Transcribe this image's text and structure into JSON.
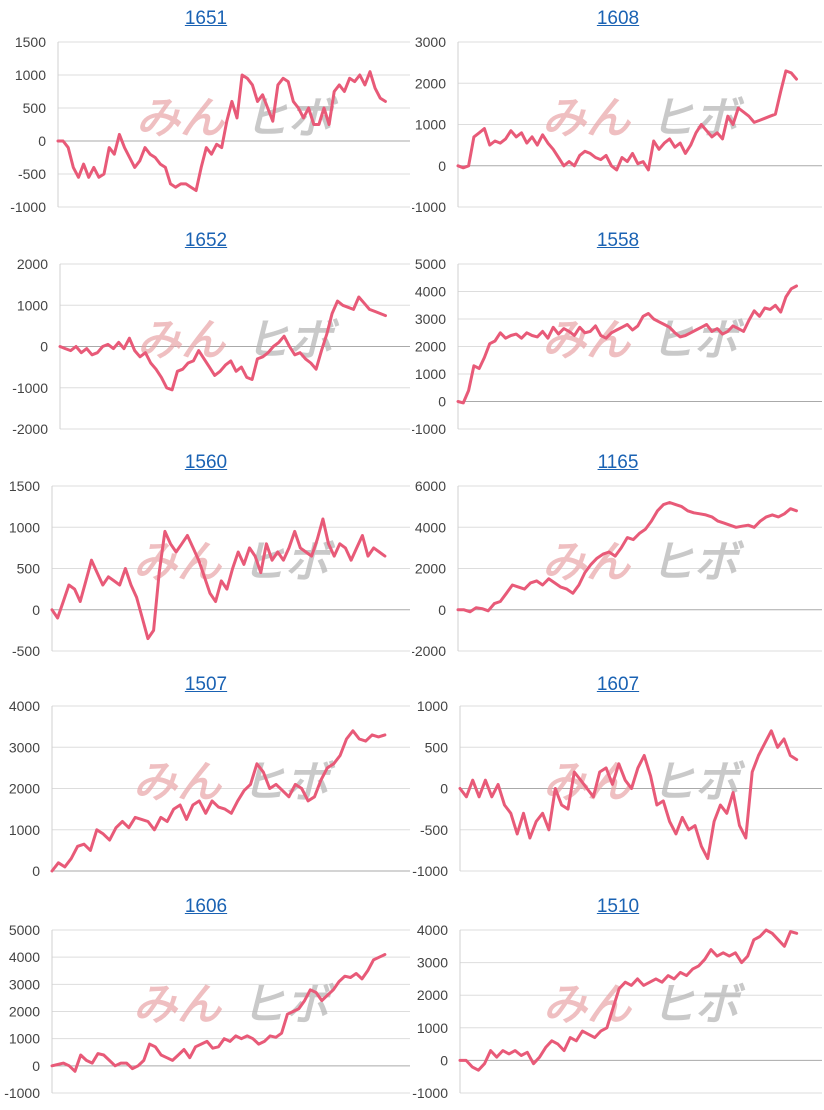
{
  "watermark": {
    "part1": "みん",
    "part2": "ヒボ",
    "colors": [
      "#e9a4a8",
      "#b7b7b7"
    ]
  },
  "line_color": "#e85a78",
  "chart_data": [
    {
      "type": "line",
      "title": "1651",
      "ylim": [
        -1000,
        1500
      ],
      "yticks": [
        1500,
        1000,
        500,
        0,
        -500,
        -1000
      ],
      "values": [
        0,
        0,
        -100,
        -400,
        -550,
        -350,
        -550,
        -400,
        -550,
        -500,
        -100,
        -200,
        100,
        -100,
        -250,
        -400,
        -300,
        -100,
        -200,
        -250,
        -350,
        -400,
        -650,
        -700,
        -650,
        -650,
        -700,
        -750,
        -400,
        -100,
        -200,
        -50,
        -100,
        300,
        600,
        350,
        1000,
        950,
        850,
        600,
        700,
        500,
        300,
        850,
        950,
        900,
        600,
        500,
        350,
        500,
        250,
        250,
        500,
        250,
        750,
        850,
        750,
        950,
        900,
        1000,
        850,
        1050,
        800,
        650,
        600
      ]
    },
    {
      "type": "line",
      "title": "1608",
      "ylim": [
        -1000,
        3000
      ],
      "yticks": [
        3000,
        2000,
        1000,
        0,
        -1000
      ],
      "values": [
        0,
        -50,
        0,
        700,
        800,
        900,
        500,
        600,
        550,
        650,
        850,
        700,
        800,
        550,
        700,
        500,
        750,
        550,
        400,
        200,
        0,
        100,
        0,
        250,
        350,
        300,
        200,
        150,
        250,
        0,
        -100,
        200,
        100,
        300,
        50,
        100,
        -100,
        600,
        400,
        550,
        650,
        450,
        550,
        300,
        500,
        800,
        1000,
        850,
        700,
        800,
        650,
        1200,
        1000,
        1400,
        1300,
        1200,
        1050,
        1100,
        1150,
        1200,
        1250,
        1800,
        2300,
        2250,
        2100
      ]
    },
    {
      "type": "line",
      "title": "1652",
      "ylim": [
        -2000,
        2000
      ],
      "yticks": [
        2000,
        1000,
        0,
        -1000,
        -2000
      ],
      "values": [
        0,
        -50,
        -100,
        0,
        -150,
        -50,
        -200,
        -150,
        0,
        50,
        -50,
        100,
        -50,
        200,
        -100,
        -250,
        -150,
        -400,
        -550,
        -750,
        -1000,
        -1050,
        -600,
        -550,
        -400,
        -350,
        -100,
        -300,
        -500,
        -700,
        -600,
        -450,
        -350,
        -600,
        -500,
        -750,
        -800,
        -300,
        -250,
        -150,
        0,
        100,
        250,
        0,
        -200,
        -150,
        -300,
        -400,
        -550,
        -100,
        300,
        800,
        1100,
        1000,
        950,
        900,
        1200,
        1050,
        900,
        850,
        800,
        750
      ]
    },
    {
      "type": "line",
      "title": "1558",
      "ylim": [
        -1000,
        5000
      ],
      "yticks": [
        5000,
        4000,
        3000,
        2000,
        1000,
        0,
        -1000
      ],
      "values": [
        0,
        -50,
        400,
        1300,
        1200,
        1600,
        2100,
        2200,
        2500,
        2300,
        2400,
        2450,
        2300,
        2500,
        2400,
        2350,
        2550,
        2300,
        2700,
        2450,
        2650,
        2550,
        2400,
        2700,
        2500,
        2550,
        2750,
        2400,
        2300,
        2500,
        2600,
        2700,
        2800,
        2600,
        2750,
        3100,
        3200,
        3000,
        2900,
        2800,
        2700,
        2500,
        2350,
        2400,
        2500,
        2600,
        2700,
        2800,
        2550,
        2650,
        2450,
        2550,
        2750,
        2650,
        2550,
        2950,
        3300,
        3100,
        3400,
        3350,
        3500,
        3250,
        3800,
        4100,
        4200
      ]
    },
    {
      "type": "line",
      "title": "1560",
      "ylim": [
        -500,
        1500
      ],
      "yticks": [
        1500,
        1000,
        500,
        0,
        -500
      ],
      "values": [
        0,
        -100,
        100,
        300,
        250,
        100,
        350,
        600,
        450,
        300,
        400,
        350,
        300,
        500,
        300,
        150,
        -100,
        -350,
        -250,
        450,
        950,
        800,
        700,
        800,
        900,
        750,
        600,
        400,
        200,
        100,
        350,
        250,
        500,
        700,
        550,
        750,
        650,
        450,
        800,
        600,
        700,
        600,
        750,
        950,
        750,
        700,
        650,
        850,
        1100,
        800,
        650,
        800,
        750,
        600,
        750,
        900,
        650,
        750,
        700,
        650
      ]
    },
    {
      "type": "line",
      "title": "1165",
      "ylim": [
        -2000,
        6000
      ],
      "yticks": [
        6000,
        4000,
        2000,
        0,
        -2000
      ],
      "values": [
        0,
        0,
        -100,
        100,
        50,
        -50,
        300,
        400,
        800,
        1200,
        1100,
        1000,
        1300,
        1400,
        1200,
        1500,
        1300,
        1100,
        1000,
        800,
        1200,
        1800,
        2200,
        2500,
        2700,
        2800,
        2600,
        3000,
        3500,
        3400,
        3700,
        3900,
        4300,
        4800,
        5100,
        5200,
        5100,
        5000,
        4800,
        4700,
        4650,
        4600,
        4500,
        4300,
        4200,
        4100,
        4000,
        4050,
        4100,
        4000,
        4300,
        4500,
        4600,
        4500,
        4650,
        4900,
        4800
      ]
    },
    {
      "type": "line",
      "title": "1507",
      "ylim": [
        0,
        4000
      ],
      "yticks": [
        4000,
        3000,
        2000,
        1000,
        0
      ],
      "values": [
        0,
        200,
        100,
        300,
        600,
        650,
        500,
        1000,
        900,
        750,
        1050,
        1200,
        1050,
        1300,
        1250,
        1200,
        1000,
        1300,
        1200,
        1500,
        1600,
        1250,
        1600,
        1700,
        1400,
        1700,
        1550,
        1500,
        1400,
        1700,
        1950,
        2100,
        2600,
        2400,
        2000,
        2100,
        1950,
        1800,
        2100,
        2000,
        1700,
        1800,
        2200,
        2500,
        2600,
        2800,
        3200,
        3400,
        3200,
        3150,
        3300,
        3250,
        3300
      ]
    },
    {
      "type": "line",
      "title": "1607",
      "ylim": [
        -1000,
        1000
      ],
      "yticks": [
        1000,
        500,
        0,
        -500,
        -1000
      ],
      "values": [
        0,
        -100,
        100,
        -100,
        100,
        -100,
        50,
        -200,
        -300,
        -550,
        -300,
        -600,
        -400,
        -300,
        -500,
        0,
        -200,
        -250,
        200,
        100,
        0,
        -100,
        200,
        250,
        50,
        300,
        100,
        0,
        250,
        400,
        150,
        -200,
        -150,
        -400,
        -550,
        -350,
        -500,
        -450,
        -700,
        -850,
        -400,
        -200,
        -300,
        -50,
        -450,
        -600,
        200,
        400,
        550,
        700,
        500,
        600,
        400,
        350
      ]
    },
    {
      "type": "line",
      "title": "1606",
      "ylim": [
        -1000,
        5000
      ],
      "yticks": [
        5000,
        4000,
        3000,
        2000,
        1000,
        0,
        -1000
      ],
      "values": [
        0,
        50,
        100,
        0,
        -200,
        400,
        200,
        100,
        450,
        400,
        200,
        0,
        100,
        100,
        -100,
        0,
        200,
        800,
        700,
        400,
        300,
        200,
        400,
        600,
        300,
        700,
        800,
        900,
        650,
        700,
        1000,
        900,
        1100,
        1000,
        1100,
        1000,
        800,
        900,
        1100,
        1050,
        1200,
        1900,
        2000,
        2100,
        2400,
        2800,
        2700,
        2400,
        2600,
        2800,
        3100,
        3300,
        3250,
        3400,
        3200,
        3500,
        3900,
        4000,
        4100
      ]
    },
    {
      "type": "line",
      "title": "1510",
      "ylim": [
        -1000,
        4000
      ],
      "yticks": [
        4000,
        3000,
        2000,
        1000,
        0,
        -1000
      ],
      "values": [
        0,
        0,
        -200,
        -300,
        -100,
        300,
        100,
        300,
        200,
        300,
        150,
        250,
        -100,
        100,
        400,
        600,
        500,
        300,
        700,
        600,
        900,
        800,
        700,
        900,
        1000,
        1600,
        2200,
        2400,
        2300,
        2500,
        2300,
        2400,
        2500,
        2400,
        2600,
        2500,
        2700,
        2600,
        2800,
        2900,
        3100,
        3400,
        3200,
        3300,
        3200,
        3300,
        3000,
        3200,
        3700,
        3800,
        4000,
        3900,
        3700,
        3500,
        3950,
        3900
      ]
    }
  ]
}
